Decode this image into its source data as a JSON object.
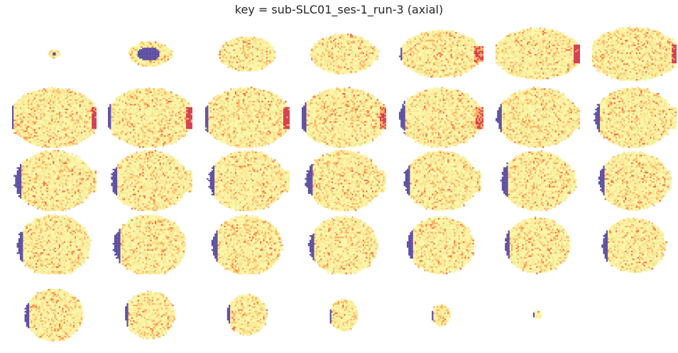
{
  "title": "key = sub-SLC01_ses-1_run-3 (axial)",
  "grid": {
    "rows": 5,
    "cols": 7,
    "slice_count": 34
  },
  "colormap": "Spectral_r",
  "colors": {
    "background": "#ffffff",
    "low": "#5e4fa2",
    "mid_yellow": "#fdf5a8",
    "light_green": "#e6f598",
    "orange": "#fdae61",
    "high_red": "#d53e4f"
  },
  "slices": [
    {
      "a": 0.07,
      "b": 0.07,
      "oy": 0.0,
      "blob": 0.32,
      "side": 0.0,
      "edge": 0.0,
      "lobe": 0.0
    },
    {
      "a": 0.25,
      "b": 0.2,
      "oy": 0.0,
      "blob": 0.55,
      "side": 0.0,
      "edge": 0.0,
      "lobe": 0.1
    },
    {
      "a": 0.34,
      "b": 0.28,
      "oy": 0.0,
      "blob": 0.0,
      "side": 0.0,
      "edge": 0.0,
      "lobe": 0.0
    },
    {
      "a": 0.4,
      "b": 0.32,
      "oy": 0.0,
      "blob": 0.0,
      "side": 0.0,
      "edge": 0.0,
      "lobe": 0.05
    },
    {
      "a": 0.48,
      "b": 0.38,
      "oy": 0.0,
      "blob": 0.0,
      "side": 0.05,
      "edge": 0.55,
      "lobe": 0.1
    },
    {
      "a": 0.52,
      "b": 0.41,
      "oy": 0.0,
      "blob": 0.0,
      "side": 0.08,
      "edge": 0.85,
      "lobe": 0.12
    },
    {
      "a": 0.54,
      "b": 0.43,
      "oy": 0.0,
      "blob": 0.0,
      "side": 0.12,
      "edge": 0.85,
      "lobe": 0.15
    },
    {
      "a": 0.54,
      "b": 0.48,
      "oy": 0.02,
      "blob": 0.0,
      "side": 0.18,
      "edge": 0.9,
      "lobe": 0.18
    },
    {
      "a": 0.52,
      "b": 0.48,
      "oy": 0.02,
      "blob": 0.0,
      "side": 0.2,
      "edge": 0.85,
      "lobe": 0.18
    },
    {
      "a": 0.53,
      "b": 0.48,
      "oy": 0.02,
      "blob": 0.0,
      "side": 0.22,
      "edge": 0.9,
      "lobe": 0.18
    },
    {
      "a": 0.52,
      "b": 0.48,
      "oy": 0.02,
      "blob": 0.0,
      "side": 0.24,
      "edge": 0.55,
      "lobe": 0.16
    },
    {
      "a": 0.5,
      "b": 0.48,
      "oy": 0.02,
      "blob": 0.0,
      "side": 0.26,
      "edge": 0.45,
      "lobe": 0.14
    },
    {
      "a": 0.49,
      "b": 0.48,
      "oy": 0.02,
      "blob": 0.0,
      "side": 0.27,
      "edge": 0.0,
      "lobe": 0.14
    },
    {
      "a": 0.47,
      "b": 0.48,
      "oy": 0.02,
      "blob": 0.0,
      "side": 0.28,
      "edge": 0.0,
      "lobe": 0.12
    },
    {
      "a": 0.47,
      "b": 0.49,
      "oy": 0.02,
      "blob": 0.0,
      "side": 0.3,
      "edge": 0.0,
      "lobe": 0.18
    },
    {
      "a": 0.46,
      "b": 0.49,
      "oy": 0.02,
      "blob": 0.0,
      "side": 0.3,
      "edge": 0.0,
      "lobe": 0.16
    },
    {
      "a": 0.46,
      "b": 0.49,
      "oy": 0.02,
      "blob": 0.0,
      "side": 0.3,
      "edge": 0.0,
      "lobe": 0.14
    },
    {
      "a": 0.45,
      "b": 0.49,
      "oy": 0.02,
      "blob": 0.0,
      "side": 0.3,
      "edge": 0.0,
      "lobe": 0.12
    },
    {
      "a": 0.44,
      "b": 0.48,
      "oy": 0.02,
      "blob": 0.0,
      "side": 0.3,
      "edge": 0.0,
      "lobe": 0.1
    },
    {
      "a": 0.43,
      "b": 0.48,
      "oy": 0.02,
      "blob": 0.0,
      "side": 0.3,
      "edge": 0.0,
      "lobe": 0.08
    },
    {
      "a": 0.42,
      "b": 0.47,
      "oy": 0.02,
      "blob": 0.0,
      "side": 0.3,
      "edge": 0.0,
      "lobe": 0.06
    },
    {
      "a": 0.44,
      "b": 0.49,
      "oy": 0.04,
      "blob": 0.0,
      "side": 0.3,
      "edge": 0.0,
      "lobe": 0.0
    },
    {
      "a": 0.43,
      "b": 0.49,
      "oy": 0.04,
      "blob": 0.0,
      "side": 0.3,
      "edge": 0.0,
      "lobe": 0.0
    },
    {
      "a": 0.42,
      "b": 0.48,
      "oy": 0.04,
      "blob": 0.0,
      "side": 0.3,
      "edge": 0.0,
      "lobe": 0.0
    },
    {
      "a": 0.41,
      "b": 0.47,
      "oy": 0.04,
      "blob": 0.0,
      "side": 0.3,
      "edge": 0.0,
      "lobe": 0.0
    },
    {
      "a": 0.4,
      "b": 0.46,
      "oy": 0.04,
      "blob": 0.0,
      "side": 0.3,
      "edge": 0.0,
      "lobe": 0.0
    },
    {
      "a": 0.39,
      "b": 0.45,
      "oy": 0.04,
      "blob": 0.0,
      "side": 0.3,
      "edge": 0.0,
      "lobe": 0.0
    },
    {
      "a": 0.38,
      "b": 0.44,
      "oy": 0.04,
      "blob": 0.0,
      "side": 0.3,
      "edge": 0.0,
      "lobe": 0.0
    },
    {
      "a": 0.35,
      "b": 0.42,
      "oy": 0.04,
      "blob": 0.0,
      "side": 0.3,
      "edge": 0.0,
      "lobe": 0.0
    },
    {
      "a": 0.3,
      "b": 0.38,
      "oy": 0.04,
      "blob": 0.0,
      "side": 0.3,
      "edge": 0.0,
      "lobe": 0.0
    },
    {
      "a": 0.24,
      "b": 0.33,
      "oy": 0.04,
      "blob": 0.0,
      "side": 0.3,
      "edge": 0.0,
      "lobe": 0.0
    },
    {
      "a": 0.17,
      "b": 0.26,
      "oy": 0.04,
      "blob": 0.0,
      "side": 0.3,
      "edge": 0.0,
      "lobe": 0.0
    },
    {
      "a": 0.11,
      "b": 0.18,
      "oy": 0.04,
      "blob": 0.0,
      "side": 0.3,
      "edge": 0.0,
      "lobe": 0.0
    },
    {
      "a": 0.05,
      "b": 0.07,
      "oy": 0.04,
      "blob": 0.0,
      "side": 0.5,
      "edge": 0.0,
      "lobe": 0.0
    }
  ]
}
